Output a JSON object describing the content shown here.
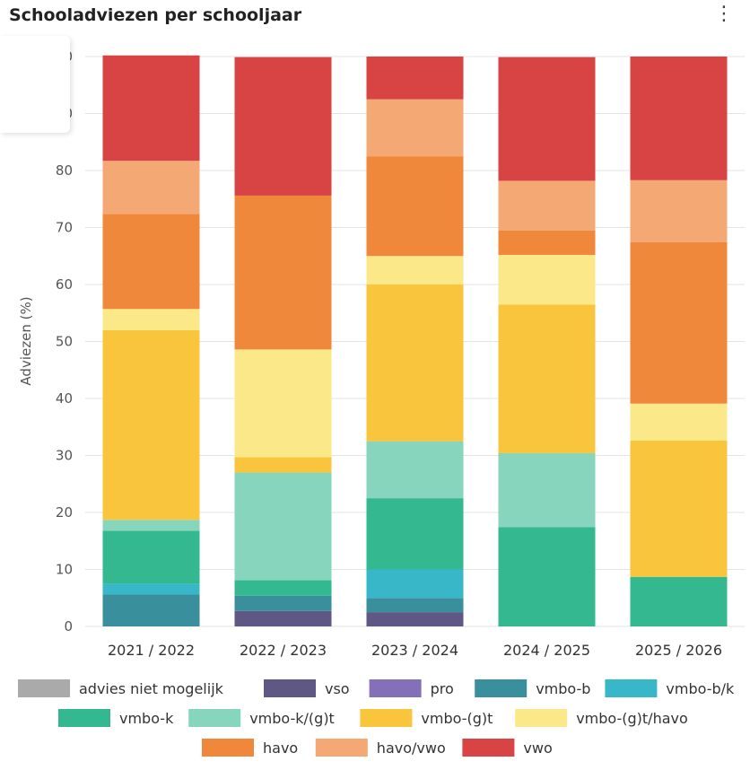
{
  "header": {
    "title": "Schooladviezen per schooljaar",
    "menu_icon": "kebab-menu-icon"
  },
  "chart_data": {
    "type": "bar",
    "stacked": true,
    "title": "Schooladviezen per schooljaar",
    "ylabel": "Adviezen (%)",
    "xlabel": "",
    "ylim": [
      0,
      100
    ],
    "yticks": [
      0,
      10,
      20,
      30,
      40,
      50,
      60,
      70,
      80,
      90,
      100
    ],
    "grid": true,
    "legend": "bottom",
    "categories": [
      "2021 / 2022",
      "2022 / 2023",
      "2023 / 2024",
      "2024 / 2025",
      "2025 / 2026"
    ],
    "series": [
      {
        "name": "advies niet mogelijk",
        "color": "#aaaaaa",
        "values": [
          0,
          0,
          0,
          0,
          0
        ]
      },
      {
        "name": "vso",
        "color": "#5f5784",
        "values": [
          0,
          2.7,
          2.5,
          0,
          0
        ]
      },
      {
        "name": "pro",
        "color": "#8470b8",
        "values": [
          0,
          0,
          0,
          0,
          0
        ]
      },
      {
        "name": "vmbo-b",
        "color": "#3a8f9d",
        "values": [
          5.6,
          2.7,
          2.5,
          0,
          0
        ]
      },
      {
        "name": "vmbo-b/k",
        "color": "#38b7c8",
        "values": [
          1.9,
          0,
          5.0,
          0,
          0
        ]
      },
      {
        "name": "vmbo-k",
        "color": "#33b88f",
        "values": [
          9.3,
          2.7,
          12.5,
          17.4,
          8.7
        ]
      },
      {
        "name": "vmbo-k/(g)t",
        "color": "#87d5bc",
        "values": [
          1.9,
          18.9,
          10.0,
          13.0,
          0
        ]
      },
      {
        "name": "vmbo-(g)t",
        "color": "#f9c53d",
        "values": [
          33.3,
          2.7,
          27.5,
          26.1,
          23.9
        ]
      },
      {
        "name": "vmbo-(g)t/havo",
        "color": "#fbe888",
        "values": [
          3.7,
          18.9,
          5.0,
          8.7,
          6.5
        ]
      },
      {
        "name": "havo",
        "color": "#f0883c",
        "values": [
          16.7,
          27.0,
          17.5,
          4.3,
          28.3
        ]
      },
      {
        "name": "havo/vwo",
        "color": "#f4a873",
        "values": [
          9.3,
          0,
          10.0,
          8.7,
          10.9
        ]
      },
      {
        "name": "vwo",
        "color": "#d84343",
        "values": [
          18.5,
          24.3,
          7.5,
          21.7,
          21.7
        ]
      }
    ]
  }
}
